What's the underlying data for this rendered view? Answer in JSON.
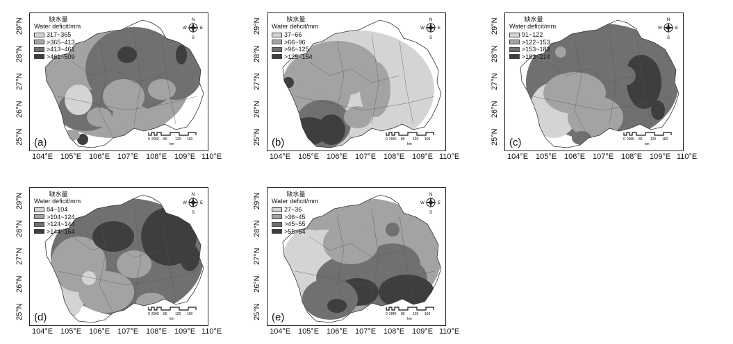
{
  "legend_title_zh": "缺水量",
  "legend_title_en": "Water deficit/mm",
  "x_ticks": [
    "104°E",
    "105°E",
    "106°E",
    "107°E",
    "108°E",
    "109°E",
    "110°E"
  ],
  "y_ticks": [
    "25°N",
    "26°N",
    "27°N",
    "28°N",
    "29°N"
  ],
  "compass": {
    "n": "N",
    "s": "S",
    "e": "E",
    "w": "W"
  },
  "scale_bar": {
    "labels": [
      "0",
      "20",
      "40",
      "80",
      "120",
      "160"
    ],
    "unit": "km"
  },
  "colors": {
    "c1": "#d4d4d4",
    "c2": "#a3a3a3",
    "c3": "#707070",
    "c4": "#3e3e3e"
  },
  "panels": [
    {
      "label": "(a)",
      "classes": [
        "317~365",
        ">365~413",
        ">413~461",
        ">461~509"
      ]
    },
    {
      "label": "(b)",
      "classes": [
        "37~66",
        ">66~96",
        ">96~125",
        ">125~154"
      ]
    },
    {
      "label": "(c)",
      "classes": [
        "91~122",
        ">122~153",
        ">153~183",
        ">183~214"
      ]
    },
    {
      "label": "(d)",
      "classes": [
        "84~104",
        ">104~124",
        ">124~144",
        ">144~164"
      ]
    },
    {
      "label": "(e)",
      "classes": [
        "27~36",
        ">36~45",
        ">45~55",
        ">55~64"
      ]
    }
  ]
}
